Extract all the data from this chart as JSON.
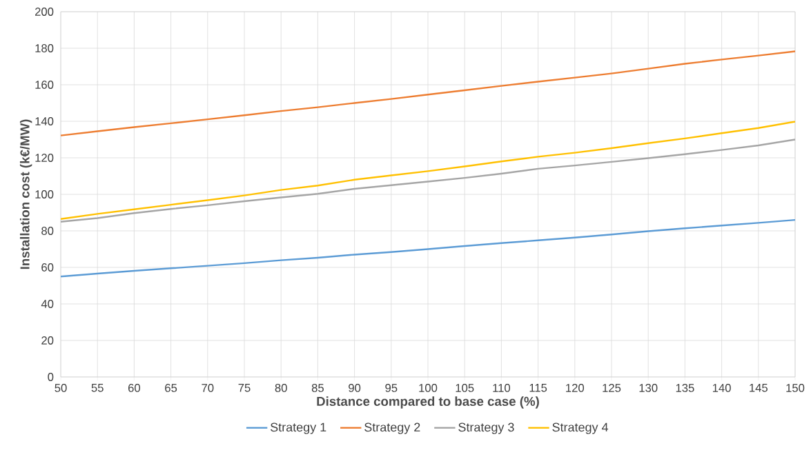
{
  "chart_data": {
    "type": "line",
    "xlabel": "Distance compared to base case (%)",
    "ylabel": "Installation cost (k€/MW)",
    "x": [
      50,
      55,
      60,
      65,
      70,
      75,
      80,
      85,
      90,
      95,
      100,
      105,
      110,
      115,
      120,
      125,
      130,
      135,
      140,
      145,
      150
    ],
    "series": [
      {
        "name": "Strategy 1",
        "color": "#5b9bd5",
        "values": [
          55,
          56.6,
          58.1,
          59.5,
          60.9,
          62.3,
          63.9,
          65.3,
          67,
          68.4,
          70,
          71.7,
          73.3,
          74.8,
          76.3,
          78,
          79.8,
          81.4,
          82.9,
          84.4,
          86
        ]
      },
      {
        "name": "Strategy 2",
        "color": "#ed7d31",
        "values": [
          132.2,
          134.5,
          136.8,
          138.9,
          141.1,
          143.3,
          145.6,
          147.7,
          150,
          152.2,
          154.6,
          157,
          159.4,
          161.7,
          163.9,
          166.2,
          168.8,
          171.5,
          173.8,
          176,
          178.3
        ]
      },
      {
        "name": "Strategy 3",
        "color": "#a5a5a5",
        "values": [
          85,
          87,
          89.7,
          92,
          94,
          96.2,
          98.3,
          100.3,
          103,
          105,
          107,
          109,
          111.3,
          114,
          115.8,
          117.8,
          119.8,
          122,
          124.3,
          126.8,
          130
        ]
      },
      {
        "name": "Strategy 4",
        "color": "#ffc000",
        "values": [
          86.5,
          89.3,
          91.8,
          94.3,
          96.8,
          99.4,
          102.4,
          104.8,
          108,
          110.4,
          112.7,
          115.3,
          118,
          120.6,
          122.8,
          125.3,
          128,
          130.6,
          133.5,
          136.3,
          139.8
        ]
      }
    ],
    "xlim": [
      50,
      150
    ],
    "ylim": [
      0,
      200
    ],
    "xticks": [
      50,
      55,
      60,
      65,
      70,
      75,
      80,
      85,
      90,
      95,
      100,
      105,
      110,
      115,
      120,
      125,
      130,
      135,
      140,
      145,
      150
    ],
    "yticks": [
      0,
      20,
      40,
      60,
      80,
      100,
      120,
      140,
      160,
      180,
      200
    ],
    "grid": true,
    "legend": "bottom",
    "marker": "none",
    "line_style": "solid"
  }
}
